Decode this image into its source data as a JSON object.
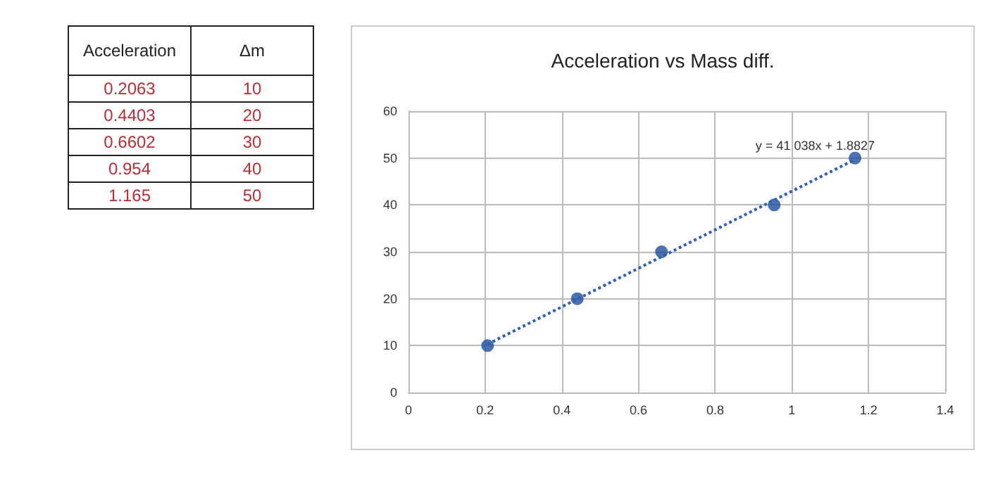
{
  "chart_data": [
    {
      "type": "other",
      "annotations": [
        "Acceleration",
        "Δm",
        "0.2063",
        "10",
        "0.4403",
        "20",
        "0.6602",
        "30",
        "0.954",
        "40",
        "1.165",
        "50"
      ]
    },
    {
      "type": "scatter",
      "title": "Acceleration vs Mass diff.",
      "x": [
        0.2063,
        0.4403,
        0.6602,
        0.954,
        1.165
      ],
      "series": [
        {
          "color": "#1f4e9c",
          "values": [
            10,
            20,
            30,
            40,
            50
          ]
        },
        {
          "type": "line",
          "color": "#2e5fb0",
          "line_style": "dotted",
          "marker": "none",
          "x": [
            0.2063,
            1.165
          ],
          "values": [
            10.3,
            49.7
          ]
        }
      ],
      "annotations": [
        "y = 41.038x + 1.8827"
      ],
      "marker": "circle",
      "grid": true,
      "xlim": [
        0,
        1.4
      ],
      "xticks": [
        0,
        0.2,
        0.4,
        0.6,
        0.8,
        1,
        1.2,
        1.4
      ],
      "ylim": [
        0,
        60
      ],
      "yticks": [
        0,
        10,
        20,
        30,
        40,
        50,
        60
      ]
    }
  ]
}
